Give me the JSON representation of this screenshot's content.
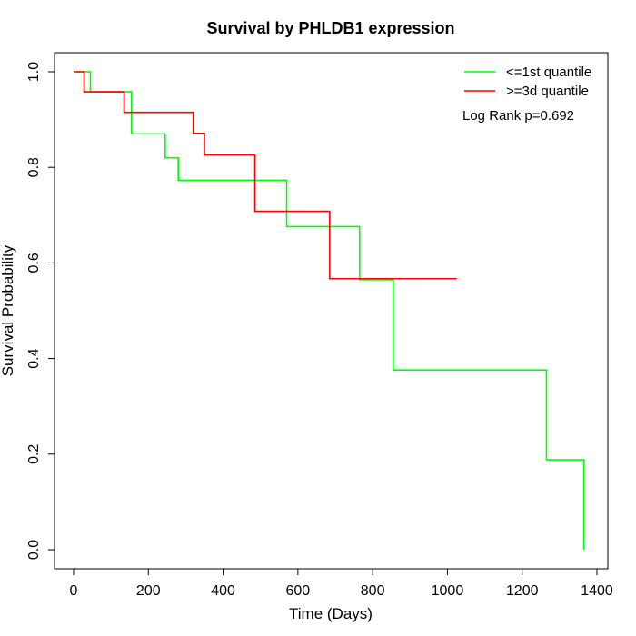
{
  "chart_data": {
    "type": "line",
    "title": "Survival by PHLDB1 expression",
    "xlabel": "Time (Days)",
    "ylabel": "Survival Probability",
    "xlim": [
      0,
      1400
    ],
    "ylim": [
      0,
      1
    ],
    "x_ticks": [
      "0",
      "200",
      "400",
      "600",
      "800",
      "1000",
      "1200",
      "1400"
    ],
    "y_ticks": [
      "0.0",
      "0.2",
      "0.4",
      "0.6",
      "0.8",
      "1.0"
    ],
    "legend_position": "top-right",
    "annotation": "Log Rank p=0.692",
    "series": [
      {
        "name": "<=1st quantile",
        "color": "#00ff00",
        "x": [
          0,
          45,
          155,
          245,
          280,
          570,
          765,
          855,
          1265,
          1365
        ],
        "y": [
          1.0,
          0.958,
          0.87,
          0.82,
          0.773,
          0.676,
          0.565,
          0.376,
          0.188,
          0.0
        ],
        "end_x": 1365
      },
      {
        "name": ">=3d quantile",
        "color": "#ff0000",
        "x": [
          0,
          28,
          135,
          320,
          350,
          485,
          685
        ],
        "y": [
          1.0,
          0.958,
          0.915,
          0.871,
          0.826,
          0.708,
          0.567
        ],
        "end_x": 1025
      }
    ]
  }
}
